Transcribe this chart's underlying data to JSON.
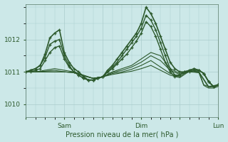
{
  "background_color": "#cce8e8",
  "plot_bg_color": "#cce8e8",
  "grid_color": "#aacccc",
  "line_color": "#2d5a2d",
  "xlabel": "Pression niveau de la mer( hPa )",
  "ylim": [
    1009.6,
    1013.1
  ],
  "yticks": [
    1010,
    1011,
    1012
  ],
  "xtick_labels": [
    "",
    "Sam",
    "",
    "Dim",
    "",
    "Lun"
  ],
  "xtick_positions": [
    0,
    24,
    48,
    72,
    96,
    120
  ],
  "num_hours": 120,
  "series": [
    {
      "x": [
        0,
        3,
        6,
        9,
        12,
        15,
        18,
        21,
        24,
        27,
        30,
        33,
        36,
        39,
        42,
        45,
        48,
        51,
        54,
        57,
        60,
        63,
        66,
        69,
        72,
        75,
        78,
        81,
        84,
        87,
        90,
        93,
        96,
        99,
        102,
        105,
        108,
        111,
        114,
        117,
        120
      ],
      "y": [
        1011.0,
        1011.05,
        1011.1,
        1011.2,
        1011.55,
        1012.05,
        1012.2,
        1012.3,
        1011.6,
        1011.3,
        1011.1,
        1011.0,
        1010.85,
        1010.75,
        1010.75,
        1010.8,
        1010.85,
        1011.05,
        1011.2,
        1011.4,
        1011.6,
        1011.8,
        1012.0,
        1012.2,
        1012.5,
        1013.0,
        1012.8,
        1012.5,
        1012.1,
        1011.7,
        1011.3,
        1011.1,
        1011.0,
        1011.0,
        1011.0,
        1011.05,
        1011.05,
        1010.95,
        1010.7,
        1010.55,
        1010.6
      ],
      "marker": true,
      "lw": 1.2
    },
    {
      "x": [
        0,
        3,
        6,
        9,
        12,
        15,
        18,
        21,
        24,
        27,
        30,
        33,
        36,
        39,
        42,
        45,
        48,
        51,
        54,
        57,
        60,
        63,
        66,
        69,
        72,
        75,
        78,
        81,
        84,
        87,
        90,
        93,
        96,
        99,
        102,
        105,
        108,
        111,
        114,
        117,
        120
      ],
      "y": [
        1011.0,
        1011.05,
        1011.1,
        1011.2,
        1011.45,
        1011.85,
        1011.95,
        1012.0,
        1011.5,
        1011.2,
        1011.0,
        1010.9,
        1010.8,
        1010.75,
        1010.75,
        1010.8,
        1010.85,
        1011.0,
        1011.15,
        1011.3,
        1011.5,
        1011.7,
        1011.9,
        1012.1,
        1012.35,
        1012.75,
        1012.6,
        1012.3,
        1011.9,
        1011.5,
        1011.1,
        1010.9,
        1010.9,
        1011.0,
        1011.05,
        1011.1,
        1011.05,
        1010.95,
        1010.7,
        1010.55,
        1010.6
      ],
      "marker": true,
      "lw": 1.0
    },
    {
      "x": [
        0,
        3,
        6,
        9,
        12,
        15,
        18,
        21,
        24,
        27,
        30,
        33,
        36,
        39,
        42,
        45,
        48,
        51,
        54,
        57,
        60,
        63,
        66,
        69,
        72,
        75,
        78,
        81,
        84,
        87,
        90,
        93,
        96,
        99,
        102,
        105,
        108,
        111,
        114,
        117,
        120
      ],
      "y": [
        1011.0,
        1011.0,
        1011.05,
        1011.1,
        1011.35,
        1011.6,
        1011.75,
        1011.8,
        1011.4,
        1011.15,
        1011.0,
        1010.9,
        1010.8,
        1010.75,
        1010.75,
        1010.8,
        1010.85,
        1011.0,
        1011.1,
        1011.25,
        1011.4,
        1011.55,
        1011.75,
        1011.95,
        1012.2,
        1012.55,
        1012.4,
        1012.1,
        1011.7,
        1011.3,
        1011.0,
        1010.85,
        1010.9,
        1011.0,
        1011.05,
        1011.1,
        1011.05,
        1010.95,
        1010.7,
        1010.55,
        1010.6
      ],
      "marker": true,
      "lw": 1.0
    },
    {
      "x": [
        0,
        6,
        12,
        18,
        24,
        30,
        36,
        42,
        48,
        54,
        60,
        66,
        72,
        78,
        84,
        90,
        96,
        102,
        108,
        114,
        120
      ],
      "y": [
        1011.0,
        1011.0,
        1011.05,
        1011.1,
        1011.05,
        1011.0,
        1010.9,
        1010.8,
        1010.85,
        1011.0,
        1011.1,
        1011.2,
        1011.4,
        1011.6,
        1011.5,
        1011.1,
        1010.95,
        1011.05,
        1011.0,
        1010.55,
        1010.6
      ],
      "marker": false,
      "lw": 0.8
    },
    {
      "x": [
        0,
        6,
        12,
        18,
        24,
        30,
        36,
        42,
        48,
        54,
        60,
        66,
        72,
        78,
        84,
        90,
        96,
        102,
        108,
        114,
        120
      ],
      "y": [
        1011.0,
        1011.0,
        1011.02,
        1011.05,
        1011.0,
        1010.98,
        1010.88,
        1010.8,
        1010.85,
        1010.98,
        1011.05,
        1011.15,
        1011.3,
        1011.5,
        1011.35,
        1011.05,
        1010.92,
        1011.0,
        1010.98,
        1010.52,
        1010.58
      ],
      "marker": false,
      "lw": 0.8
    },
    {
      "x": [
        0,
        6,
        12,
        18,
        24,
        30,
        36,
        42,
        48,
        54,
        60,
        66,
        72,
        78,
        84,
        90,
        96,
        99,
        102,
        105,
        108,
        111,
        114,
        117,
        120
      ],
      "y": [
        1011.0,
        1011.0,
        1011.0,
        1011.0,
        1011.0,
        1010.98,
        1010.88,
        1010.8,
        1010.85,
        1010.95,
        1011.0,
        1011.08,
        1011.2,
        1011.35,
        1011.15,
        1010.95,
        1010.85,
        1010.95,
        1011.05,
        1011.05,
        1011.0,
        1010.6,
        1010.55,
        1010.55,
        1010.58
      ],
      "marker": false,
      "lw": 0.8
    },
    {
      "x": [
        0,
        6,
        12,
        18,
        24,
        30,
        36,
        42,
        48,
        54,
        60,
        66,
        72,
        78,
        84,
        90,
        96,
        99,
        102,
        105,
        108,
        111,
        114,
        117,
        120
      ],
      "y": [
        1011.0,
        1011.0,
        1011.0,
        1011.0,
        1011.0,
        1010.98,
        1010.88,
        1010.8,
        1010.85,
        1010.92,
        1010.97,
        1011.02,
        1011.1,
        1011.2,
        1011.05,
        1010.9,
        1010.82,
        1010.92,
        1011.02,
        1011.0,
        1010.97,
        1010.58,
        1010.5,
        1010.5,
        1010.55
      ],
      "marker": false,
      "lw": 0.8
    }
  ]
}
